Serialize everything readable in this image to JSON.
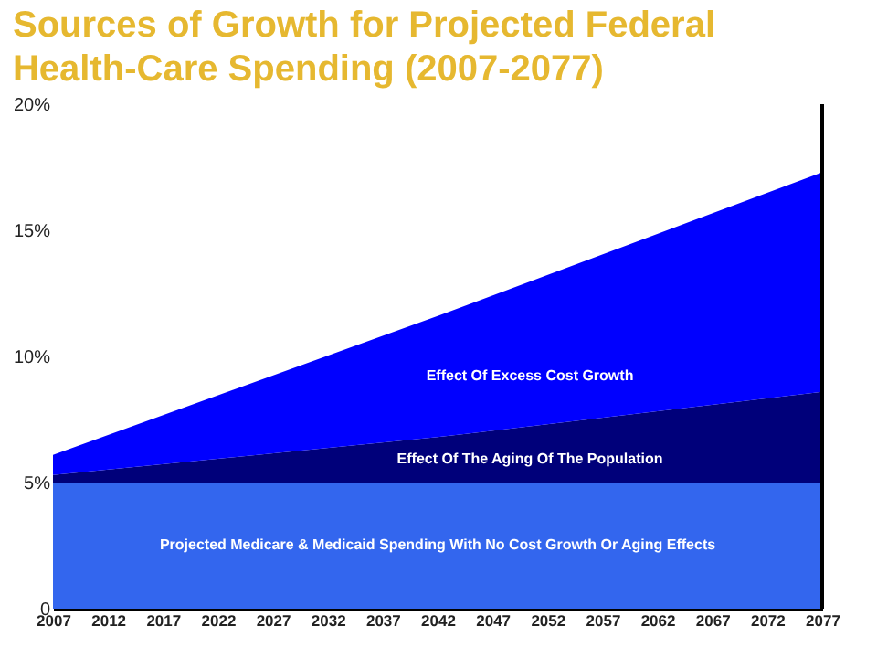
{
  "chart_data": {
    "type": "area",
    "title": "Sources of Growth for Projected Federal Health-Care Spending (2007-2077)",
    "stacked": true,
    "legend": false,
    "grid": false,
    "x": [
      2007,
      2042,
      2077
    ],
    "series": [
      {
        "name": "Projected Medicare & Medicaid Spending With No Cost Growth Or Aging Effects",
        "color": "#3366ee",
        "values": [
          5,
          5,
          5
        ]
      },
      {
        "name": "Effect Of The Aging Of The Population",
        "color": "#00007a",
        "values": [
          0.3,
          1.8,
          3.6
        ]
      },
      {
        "name": "Effect Of Excess Cost Growth",
        "color": "#0000ff",
        "values": [
          0.8,
          4.8,
          8.7
        ]
      }
    ],
    "xlim": [
      2007,
      2077
    ],
    "xticks": [
      2007,
      2012,
      2017,
      2022,
      2027,
      2032,
      2037,
      2042,
      2047,
      2052,
      2057,
      2062,
      2067,
      2072,
      2077
    ],
    "ylim": [
      0,
      20
    ],
    "yticks": [
      0,
      {
        "value": 5,
        "label": "5%"
      },
      {
        "value": 10,
        "label": "10%"
      },
      {
        "value": 15,
        "label": "15%"
      },
      {
        "value": 20,
        "label": "20%"
      }
    ]
  }
}
